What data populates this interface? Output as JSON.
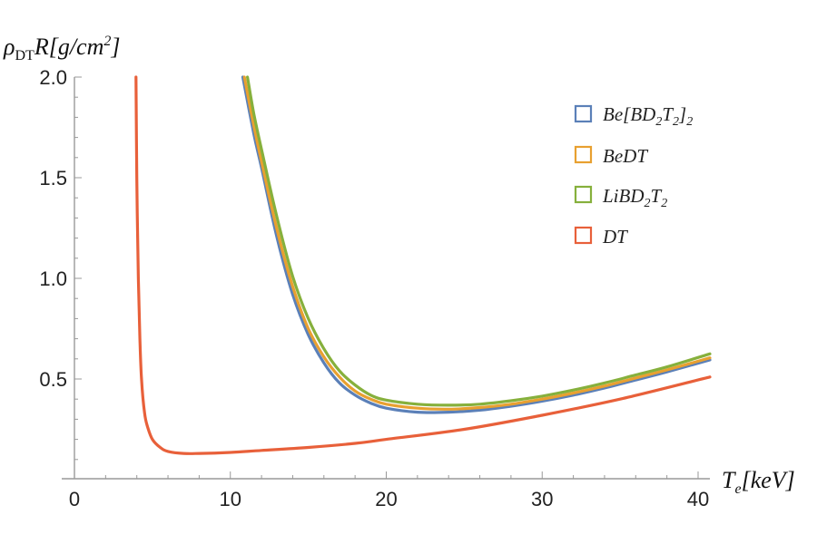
{
  "chart_data": {
    "type": "line",
    "title": "",
    "xlabel": "T_e[keV]",
    "ylabel": "ρ_DT R[g/cm^2]",
    "xlim": [
      0,
      41
    ],
    "ylim": [
      0,
      2.0
    ],
    "x_ticks": [
      0,
      10,
      20,
      30,
      40
    ],
    "y_ticks": [
      0.5,
      1.0,
      1.5,
      2.0
    ],
    "x_tick_labels": [
      "0",
      "10",
      "20",
      "30",
      "40"
    ],
    "y_tick_labels": [
      "0.5",
      "1.0",
      "1.5",
      "2.0"
    ],
    "grid": false,
    "legend_position": "top-right",
    "series": [
      {
        "name": "Be[BD2T2]2",
        "color": "#5b80b8",
        "x": [
          10.8,
          11.5,
          12,
          13,
          14,
          15,
          16,
          17,
          18,
          19,
          20,
          22,
          24,
          26,
          28,
          30,
          32,
          34,
          36,
          38,
          41
        ],
        "y": [
          2.0,
          1.72,
          1.55,
          1.2,
          0.92,
          0.72,
          0.58,
          0.48,
          0.42,
          0.38,
          0.355,
          0.335,
          0.335,
          0.345,
          0.365,
          0.39,
          0.42,
          0.455,
          0.495,
          0.535,
          0.595
        ]
      },
      {
        "name": "BeDT",
        "color": "#e8a030",
        "x": [
          10.9,
          11.5,
          12,
          13,
          14,
          15,
          16,
          17,
          18,
          19,
          20,
          22,
          24,
          26,
          28,
          30,
          32,
          34,
          36,
          38,
          41
        ],
        "y": [
          2.0,
          1.76,
          1.58,
          1.24,
          0.96,
          0.75,
          0.61,
          0.51,
          0.44,
          0.4,
          0.375,
          0.355,
          0.35,
          0.358,
          0.375,
          0.4,
          0.43,
          0.465,
          0.505,
          0.545,
          0.605
        ]
      },
      {
        "name": "LiBD2T2",
        "color": "#86b03c",
        "x": [
          11.1,
          11.5,
          12,
          13,
          14,
          15,
          16,
          17,
          18,
          19,
          20,
          22,
          24,
          26,
          28,
          30,
          32,
          34,
          36,
          38,
          41
        ],
        "y": [
          2.0,
          1.82,
          1.64,
          1.3,
          1.01,
          0.8,
          0.65,
          0.54,
          0.47,
          0.42,
          0.395,
          0.375,
          0.37,
          0.375,
          0.392,
          0.415,
          0.445,
          0.48,
          0.52,
          0.56,
          0.625
        ]
      },
      {
        "name": "DT",
        "color": "#e8603a",
        "x": [
          3.95,
          4.0,
          4.1,
          4.2,
          4.3,
          4.5,
          4.7,
          5.0,
          5.5,
          6,
          7,
          8,
          10,
          12,
          15,
          18,
          20,
          25,
          30,
          35,
          41
        ],
        "y": [
          2.0,
          1.5,
          1.0,
          0.7,
          0.5,
          0.33,
          0.26,
          0.2,
          0.16,
          0.14,
          0.13,
          0.13,
          0.135,
          0.145,
          0.16,
          0.18,
          0.2,
          0.25,
          0.32,
          0.4,
          0.51
        ]
      }
    ]
  }
}
